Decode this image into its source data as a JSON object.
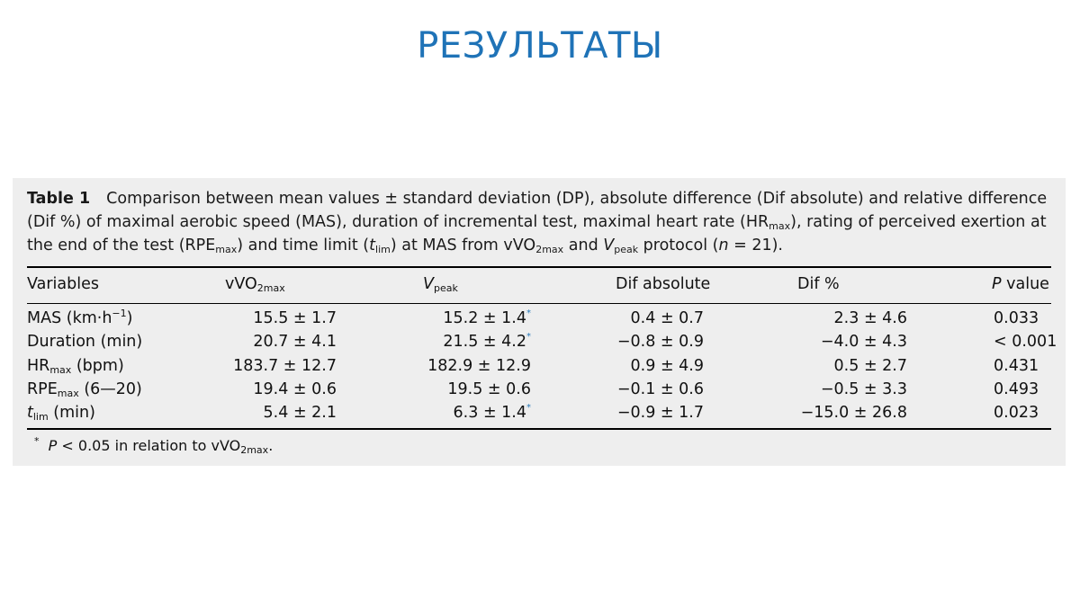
{
  "slide": {
    "title": "РЕЗУЛЬТАТЫ",
    "title_color": "#1f73b7"
  },
  "table": {
    "label": "Table 1",
    "caption": {
      "p1": "Comparison between mean values ± standard deviation (DP), absolute difference (Dif absolute) and relative difference",
      "p2": "(Dif %) of maximal aerobic speed (MAS), duration of incremental test, maximal heart rate (HR",
      "p2_sub": "max",
      "p3": "), rating of perceived exertion",
      "p4": "at the end of the test (RPE",
      "p4_sub": "max",
      "p5": ") and time limit (",
      "p5_t": "t",
      "p5_sub": "lim",
      "p6": ") at MAS from vVO",
      "p6_sub": "2max",
      "p7": " and ",
      "p7_v": "V",
      "p7_sub": "peak",
      "p8": " protocol (",
      "p8_n": "n",
      "p9": " = 21)."
    },
    "headers": {
      "variables": "Variables",
      "vvo_main": "vVO",
      "vvo_sub": "2max",
      "vpeak_main": "V",
      "vpeak_sub": "peak",
      "dif_abs": "Dif absolute",
      "dif_pct": "Dif %",
      "p_italic": "P",
      "p_rest": " value"
    },
    "rows": [
      {
        "var_main": "MAS (km·h",
        "var_sup": "−1",
        "var_end": ")",
        "vvo": "15.5 ± 1.7",
        "vpeak": "15.2 ± 1.4",
        "star": "*",
        "abs": "0.4 ± 0.7",
        "pct": "2.3 ± 4.6",
        "p": "0.033"
      },
      {
        "var_main": "Duration (min)",
        "vvo": "20.7 ± 4.1",
        "vpeak": "21.5 ± 4.2",
        "star": "*",
        "abs": "−0.8 ± 0.9",
        "pct": "−4.0 ± 4.3",
        "p": "< 0.001"
      },
      {
        "var_main": "HR",
        "var_sub": "max",
        "var_end": " (bpm)",
        "vvo": "183.7 ± 12.7",
        "vpeak": "182.9 ± 12.9",
        "abs": "0.9 ± 4.9",
        "pct": "0.5 ± 2.7",
        "p": "0.431"
      },
      {
        "var_main": "RPE",
        "var_sub": "max",
        "var_end": " (6—20)",
        "vvo": "19.4 ± 0.6",
        "vpeak": "19.5 ± 0.6",
        "abs": "−0.1 ± 0.6",
        "pct": "−0.5 ± 3.3",
        "p": "0.493"
      },
      {
        "var_main": "t",
        "var_sub": "lim",
        "var_end": " (min)",
        "vvo": "5.4 ± 2.1",
        "vpeak": "6.3 ± 1.4",
        "star": "*",
        "abs": "−0.9 ± 1.7",
        "pct": "−15.0 ± 26.8",
        "p": "0.023"
      }
    ],
    "footnote": {
      "mark": "*",
      "p": "P",
      "text": " < 0.05 in relation to vVO",
      "sub": "2max",
      "end": "."
    }
  }
}
